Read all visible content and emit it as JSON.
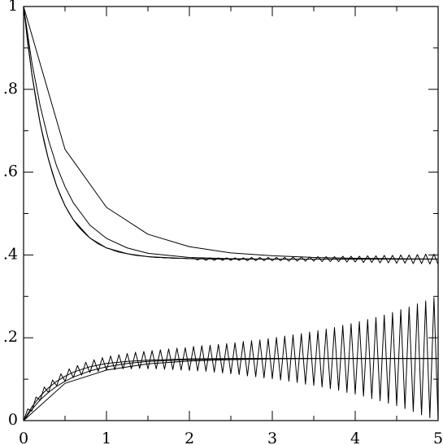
{
  "chart_data": {
    "type": "line",
    "xlim": [
      0,
      5
    ],
    "ylim": [
      0,
      1
    ],
    "xticks": [
      0,
      1,
      2,
      3,
      4,
      5
    ],
    "xminorticks": [
      0.5,
      1.5,
      2.5,
      3.5,
      4.5
    ],
    "yticks": [
      0,
      {
        "value": 0.2,
        "label": ".2"
      },
      {
        "value": 0.4,
        "label": ".4"
      },
      {
        "value": 0.6,
        "label": ".6"
      },
      {
        "value": 0.8,
        "label": ".8"
      },
      1
    ],
    "yminorticks": [
      0.1,
      0.3,
      0.5,
      0.7,
      0.9
    ],
    "grid": false,
    "series": [
      {
        "color": "#000000",
        "x": [
          0,
          0.5,
          1,
          1.5,
          2,
          2.5,
          3,
          3.5,
          4,
          4.5,
          5
        ],
        "values": [
          1,
          0.655,
          0.515,
          0.45,
          0.42,
          0.405,
          0.398,
          0.394,
          0.392,
          0.391,
          0.39
        ]
      },
      {
        "color": "#000000",
        "x": [
          0,
          0.5,
          1,
          1.5,
          2,
          2.5,
          3,
          3.5,
          4,
          4.5,
          5
        ],
        "values": [
          0,
          0.09,
          0.122,
          0.137,
          0.144,
          0.147,
          0.149,
          0.15,
          0.15,
          0.15,
          0.15
        ]
      },
      {
        "color": "#000000",
        "x": [
          0,
          0.1,
          0.2,
          0.3,
          0.4,
          0.5,
          0.6,
          0.8,
          1,
          1.25,
          1.5,
          2,
          2.5,
          3,
          4,
          5
        ],
        "values": [
          1,
          0.837,
          0.718,
          0.631,
          0.566,
          0.519,
          0.485,
          0.441,
          0.417,
          0.403,
          0.396,
          0.391,
          0.39,
          0.39,
          0.39,
          0.39
        ]
      },
      {
        "color": "#000000",
        "x": [
          0,
          0.1,
          0.2,
          0.3,
          0.4,
          0.5,
          0.6,
          0.8,
          1,
          1.25,
          1.5,
          2,
          2.5,
          3,
          4,
          5
        ],
        "values": [
          1,
          0.865,
          0.76,
          0.678,
          0.614,
          0.565,
          0.526,
          0.472,
          0.44,
          0.417,
          0.404,
          0.394,
          0.391,
          0.39,
          0.39,
          0.39
        ]
      },
      {
        "color": "#000000",
        "x": [
          0,
          0.1,
          0.2,
          0.3,
          0.4,
          0.5,
          0.6,
          0.8,
          1,
          1.25,
          1.5,
          2,
          2.5,
          3,
          4,
          5
        ],
        "values": [
          0,
          0.033,
          0.059,
          0.079,
          0.095,
          0.107,
          0.117,
          0.13,
          0.138,
          0.143,
          0.146,
          0.149,
          0.15,
          0.15,
          0.15,
          0.15
        ]
      },
      {
        "color": "#000000",
        "x": [
          0,
          0.1,
          0.2,
          0.3,
          0.4,
          0.5,
          0.6,
          0.8,
          1,
          1.25,
          1.5,
          2,
          2.5,
          3,
          4,
          5
        ],
        "values": [
          0,
          0.027,
          0.05,
          0.068,
          0.083,
          0.095,
          0.105,
          0.12,
          0.13,
          0.138,
          0.143,
          0.147,
          0.149,
          0.15,
          0.15,
          0.15
        ]
      },
      {
        "color": "#000000",
        "x": [
          0,
          0.05,
          0.1,
          0.15,
          0.2,
          0.25,
          0.3,
          0.35,
          0.4,
          0.45,
          0.5,
          0.55,
          0.6,
          0.65,
          0.7,
          0.75,
          0.8,
          0.85,
          0.9,
          0.95,
          1,
          1.05,
          1.1,
          1.15,
          1.2,
          1.25,
          1.3,
          1.35,
          1.4,
          1.45,
          1.5,
          1.55,
          1.6,
          1.65,
          1.7,
          1.75,
          1.8,
          1.85,
          1.9,
          1.95,
          2,
          2.05,
          2.1,
          2.15,
          2.2,
          2.25,
          2.3,
          2.35,
          2.4,
          2.45,
          2.5,
          2.55,
          2.6,
          2.65,
          2.7,
          2.75,
          2.8,
          2.85,
          2.9,
          2.95,
          3,
          3.05,
          3.1,
          3.15,
          3.2,
          3.25,
          3.3,
          3.35,
          3.4,
          3.45,
          3.5,
          3.55,
          3.6,
          3.65,
          3.7,
          3.75,
          3.8,
          3.85,
          3.9,
          3.95,
          4,
          4.05,
          4.1,
          4.15,
          4.2,
          4.25,
          4.3,
          4.35,
          4.4,
          4.45,
          4.5,
          4.55,
          4.6,
          4.65,
          4.7,
          4.75,
          4.8,
          4.85,
          4.9,
          4.95,
          5
        ],
        "values": [
          1,
          0.912,
          0.837,
          0.773,
          0.718,
          0.671,
          0.631,
          0.596,
          0.566,
          0.541,
          0.519,
          0.501,
          0.485,
          0.471,
          0.46,
          0.45,
          0.441,
          0.434,
          0.427,
          0.422,
          0.417,
          0.414,
          0.41,
          0.407,
          0.405,
          0.403,
          0.401,
          0.399,
          0.398,
          0.397,
          0.396,
          0.395,
          0.394,
          0.394,
          0.393,
          0.393,
          0.392,
          0.392,
          0.392,
          0.392,
          0.391,
          0.392,
          0.388,
          0.393,
          0.387,
          0.393,
          0.387,
          0.393,
          0.387,
          0.393,
          0.387,
          0.393,
          0.387,
          0.393,
          0.386,
          0.394,
          0.386,
          0.394,
          0.386,
          0.394,
          0.386,
          0.394,
          0.386,
          0.394,
          0.385,
          0.395,
          0.385,
          0.395,
          0.385,
          0.395,
          0.385,
          0.396,
          0.384,
          0.396,
          0.384,
          0.396,
          0.384,
          0.397,
          0.383,
          0.397,
          0.383,
          0.397,
          0.382,
          0.398,
          0.382,
          0.398,
          0.381,
          0.399,
          0.381,
          0.399,
          0.38,
          0.4,
          0.38,
          0.4,
          0.379,
          0.401,
          0.379,
          0.402,
          0.378,
          0.402,
          0.377
        ]
      },
      {
        "color": "#000000",
        "x": [
          0,
          0.05,
          0.1,
          0.15,
          0.2,
          0.25,
          0.3,
          0.35,
          0.4,
          0.45,
          0.5,
          0.55,
          0.6,
          0.65,
          0.7,
          0.75,
          0.8,
          0.85,
          0.9,
          0.95,
          1,
          1.05,
          1.1,
          1.15,
          1.2,
          1.25,
          1.3,
          1.35,
          1.4,
          1.45,
          1.5,
          1.55,
          1.6,
          1.65,
          1.7,
          1.75,
          1.8,
          1.85,
          1.9,
          1.95,
          2,
          2.05,
          2.1,
          2.15,
          2.2,
          2.25,
          2.3,
          2.35,
          2.4,
          2.45,
          2.5,
          2.55,
          2.6,
          2.65,
          2.7,
          2.75,
          2.8,
          2.85,
          2.9,
          2.95,
          3,
          3.05,
          3.1,
          3.15,
          3.2,
          3.25,
          3.3,
          3.35,
          3.4,
          3.45,
          3.5,
          3.55,
          3.6,
          3.65,
          3.7,
          3.75,
          3.8,
          3.85,
          3.9,
          3.95,
          4,
          4.05,
          4.1,
          4.15,
          4.2,
          4.25,
          4.3,
          4.35,
          4.4,
          4.45,
          4.5,
          4.55,
          4.6,
          4.65,
          4.7,
          4.75,
          4.8,
          4.85,
          4.9,
          4.95,
          5
        ],
        "values": [
          0,
          0.028,
          0.023,
          0.057,
          0.049,
          0.081,
          0.068,
          0.098,
          0.084,
          0.113,
          0.095,
          0.125,
          0.104,
          0.133,
          0.11,
          0.141,
          0.116,
          0.147,
          0.119,
          0.152,
          0.122,
          0.156,
          0.123,
          0.159,
          0.125,
          0.162,
          0.125,
          0.165,
          0.126,
          0.167,
          0.125,
          0.169,
          0.125,
          0.171,
          0.124,
          0.173,
          0.123,
          0.175,
          0.122,
          0.176,
          0.121,
          0.179,
          0.12,
          0.181,
          0.119,
          0.182,
          0.117,
          0.184,
          0.115,
          0.186,
          0.113,
          0.188,
          0.111,
          0.191,
          0.108,
          0.193,
          0.106,
          0.195,
          0.103,
          0.198,
          0.101,
          0.201,
          0.098,
          0.204,
          0.095,
          0.207,
          0.092,
          0.21,
          0.088,
          0.214,
          0.085,
          0.217,
          0.081,
          0.221,
          0.077,
          0.225,
          0.073,
          0.23,
          0.068,
          0.234,
          0.064,
          0.239,
          0.059,
          0.244,
          0.053,
          0.249,
          0.048,
          0.255,
          0.042,
          0.261,
          0.036,
          0.268,
          0.029,
          0.274,
          0.022,
          0.282,
          0.014,
          0.289,
          0.007,
          0.297,
          0
        ]
      }
    ]
  }
}
